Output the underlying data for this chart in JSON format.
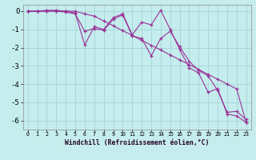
{
  "xlabel": "Windchill (Refroidissement éolien,°C)",
  "background_color": "#c5eded",
  "grid_color": "#a8d8d8",
  "line_color": "#993399",
  "x_ticks": [
    0,
    1,
    2,
    3,
    4,
    5,
    6,
    7,
    8,
    9,
    10,
    11,
    12,
    13,
    14,
    15,
    16,
    17,
    18,
    19,
    20,
    21,
    22,
    23
  ],
  "y_ticks": [
    0,
    -1,
    -2,
    -3,
    -4,
    -5,
    -6
  ],
  "xlim": [
    -0.5,
    23.5
  ],
  "ylim": [
    -6.5,
    0.35
  ],
  "series1": [
    0,
    0,
    0.05,
    0.05,
    0.0,
    -0.1,
    -1.85,
    -0.85,
    -1.0,
    -0.35,
    -0.15,
    -1.3,
    -0.6,
    -0.75,
    0.05,
    -1.0,
    -2.1,
    -3.1,
    -3.4,
    -4.45,
    -4.25,
    -5.65,
    -5.75,
    -6.1
  ],
  "series2": [
    0,
    0,
    0,
    0.0,
    -0.05,
    -0.15,
    -1.1,
    -0.95,
    -1.05,
    -0.45,
    -0.2,
    -1.35,
    -1.5,
    -2.45,
    -1.5,
    -1.1,
    -1.95,
    -2.75,
    -3.25,
    -3.55,
    -4.35,
    -5.55,
    -5.5,
    -5.95
  ],
  "series3": [
    0,
    0,
    0,
    0,
    0,
    0,
    -0.15,
    -0.27,
    -0.54,
    -0.8,
    -1.07,
    -1.33,
    -1.6,
    -1.87,
    -2.13,
    -2.4,
    -2.67,
    -2.93,
    -3.2,
    -3.47,
    -3.73,
    -4.0,
    -4.27,
    -6.1
  ]
}
